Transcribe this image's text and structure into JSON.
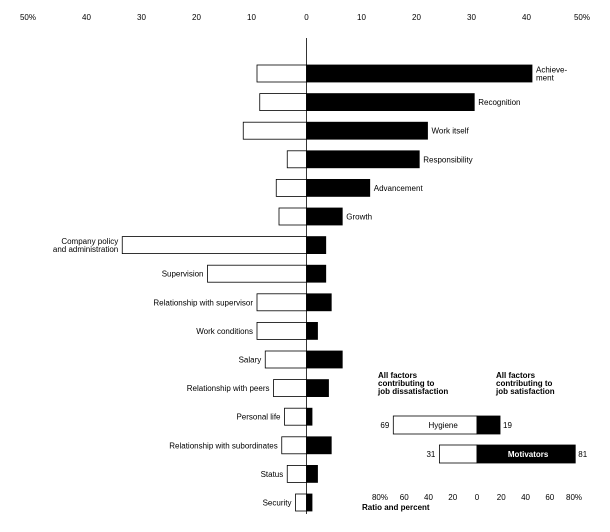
{
  "chart_data": [
    {
      "type": "bar",
      "orientation": "horizontal-diverging",
      "axis_tick_labels": [
        "50%",
        "40",
        "30",
        "20",
        "10",
        "0",
        "10",
        "20",
        "30",
        "40",
        "50%"
      ],
      "xlim": [
        -50,
        50
      ],
      "grid": false,
      "series": [
        {
          "name": "",
          "color": "#ffffff"
        },
        {
          "name": "",
          "color": "#000000"
        }
      ],
      "categories": [
        {
          "label": "Achieve-\nment",
          "dissatisfaction": 9,
          "satisfaction": 41
        },
        {
          "label": "Recognition",
          "dissatisfaction": 8.5,
          "satisfaction": 30.5
        },
        {
          "label": "Work itself",
          "dissatisfaction": 11.5,
          "satisfaction": 22
        },
        {
          "label": "Responsibility",
          "dissatisfaction": 3.5,
          "satisfaction": 20.5
        },
        {
          "label": "Advancement",
          "dissatisfaction": 5.5,
          "satisfaction": 11.5
        },
        {
          "label": "Growth",
          "dissatisfaction": 5,
          "satisfaction": 6.5
        },
        {
          "label": "Company policy\nand administration",
          "dissatisfaction": 33.5,
          "satisfaction": 3.5
        },
        {
          "label": "Supervision",
          "dissatisfaction": 18,
          "satisfaction": 3.5
        },
        {
          "label": "Relationship with supervisor",
          "dissatisfaction": 9,
          "satisfaction": 4.5
        },
        {
          "label": "Work conditions",
          "dissatisfaction": 9,
          "satisfaction": 2
        },
        {
          "label": "Salary",
          "dissatisfaction": 7.5,
          "satisfaction": 6.5
        },
        {
          "label": "Relationship with peers",
          "dissatisfaction": 6,
          "satisfaction": 4
        },
        {
          "label": "Personal life",
          "dissatisfaction": 4,
          "satisfaction": 1
        },
        {
          "label": "Relationship with subordinates",
          "dissatisfaction": 4.5,
          "satisfaction": 4.5
        },
        {
          "label": "Status",
          "dissatisfaction": 3.5,
          "satisfaction": 2
        },
        {
          "label": "Security",
          "dissatisfaction": 2,
          "satisfaction": 1
        }
      ]
    },
    {
      "type": "bar",
      "orientation": "horizontal-diverging",
      "header_left": "All factors\ncontributing to\njob dissatisfaction",
      "header_right": "All factors\ncontributing to\njob satisfaction",
      "axis_tick_labels": [
        "80%",
        "60",
        "40",
        "20",
        "0",
        "20",
        "40",
        "60",
        "80%"
      ],
      "xlim": [
        -80,
        80
      ],
      "xlabel": "Ratio and percent",
      "categories": [
        {
          "label": "Hygiene",
          "dissatisfaction": 69,
          "satisfaction": 19,
          "left_value_label": "69",
          "right_value_label": "19"
        },
        {
          "label": "Motivators",
          "dissatisfaction": 31,
          "satisfaction": 81,
          "left_value_label": "31",
          "right_value_label": "81"
        }
      ]
    }
  ]
}
